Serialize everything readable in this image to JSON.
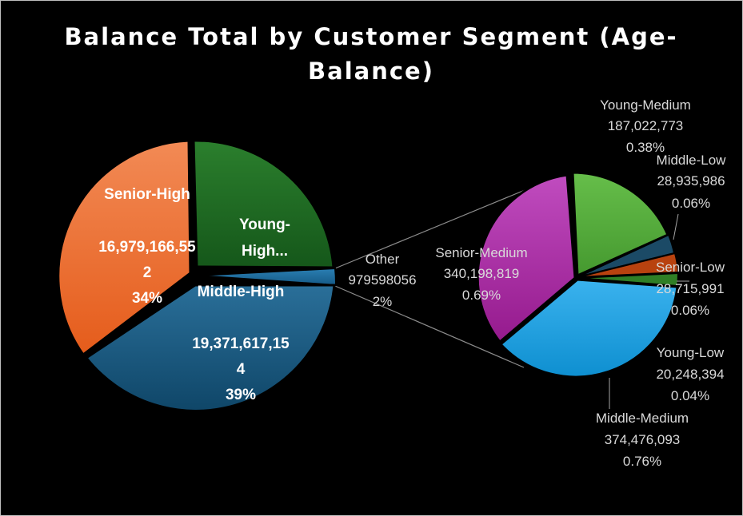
{
  "chart_data": {
    "type": "pie",
    "subtype": "pie-of-pie",
    "title_lines": [
      "Balance Total by Customer Segment (Age-",
      "Balance)"
    ],
    "main_pie": [
      {
        "name": "Young-High",
        "label_lines": [
          "Young-",
          "High..."
        ],
        "value_label": "",
        "percent_label": "",
        "value": 12853419312,
        "color": "#1e6b20"
      },
      {
        "name": "Other",
        "label_lines": [
          "Other"
        ],
        "value_label": "979598056",
        "percent_label": "2%",
        "value": 979598056,
        "color": "#1d6a9b"
      },
      {
        "name": "Middle-High",
        "label_lines": [
          "Middle-High"
        ],
        "value_label_lines": [
          "19,371,617,15",
          "4"
        ],
        "percent_label": "39%",
        "value": 19371617154,
        "color": "#15557f"
      },
      {
        "name": "Senior-High",
        "label_lines": [
          "Senior-High"
        ],
        "value_label_lines": [
          "16,979,166,55",
          "2"
        ],
        "percent_label": "34%",
        "value": 16979166552,
        "color": "#ec6a2a"
      }
    ],
    "secondary_pie": [
      {
        "name": "Young-Medium",
        "value_label": "187,022,773",
        "percent_label": "0.38%",
        "value": 187022773,
        "color": "#4fa837"
      },
      {
        "name": "Middle-Low",
        "value_label": "28,935,986",
        "percent_label": "0.06%",
        "value": 28935986,
        "color": "#1b4a66"
      },
      {
        "name": "Senior-Low",
        "value_label": "28,715,991",
        "percent_label": "0.06%",
        "value": 28715991,
        "color": "#b8420f"
      },
      {
        "name": "Young-Low",
        "value_label": "20,248,394",
        "percent_label": "0.04%",
        "value": 20248394,
        "color": "#2f7f26"
      },
      {
        "name": "Middle-Medium",
        "value_label": "374,476,093",
        "percent_label": "0.76%",
        "value": 374476093,
        "color": "#1aa0e0"
      },
      {
        "name": "Senior-Medium",
        "value_label": "340,198,819",
        "percent_label": "0.69%",
        "value": 340198819,
        "color": "#a8239f"
      }
    ]
  }
}
